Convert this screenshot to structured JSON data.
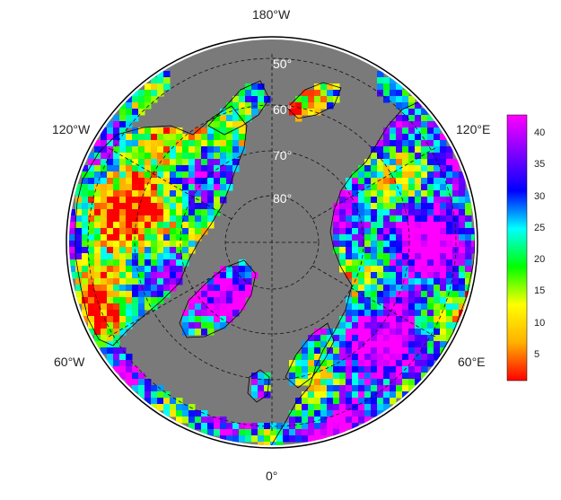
{
  "map": {
    "projection": "north-polar-stereographic",
    "ocean_color": "#7a7a7a",
    "background_color": "#ffffff",
    "longitude_labels": {
      "top": "180°W",
      "bottom": "0°",
      "upper_left": "120°W",
      "lower_left": "60°W",
      "upper_right": "120°E",
      "lower_right": "60°E"
    },
    "latitude_labels": [
      "50°",
      "60°",
      "70°",
      "80°"
    ]
  },
  "colorbar": {
    "min": 1,
    "max": 43,
    "ticks": [
      "40",
      "35",
      "30",
      "25",
      "20",
      "15",
      "10",
      "5"
    ],
    "tick_values": [
      40,
      35,
      30,
      25,
      20,
      15,
      10,
      5
    ],
    "colors": [
      "#ff0000",
      "#ffb000",
      "#ffff00",
      "#00ff00",
      "#00ffff",
      "#0000ff",
      "#8000ff",
      "#ff00ff"
    ]
  }
}
